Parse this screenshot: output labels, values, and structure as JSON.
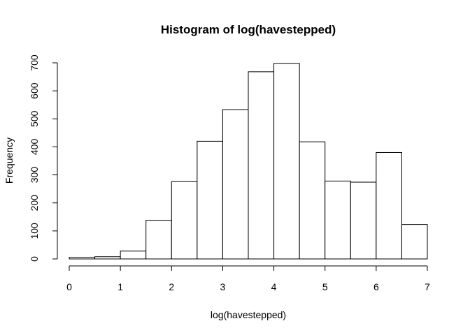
{
  "chart_data": {
    "type": "bar",
    "title": "Histogram of log(havestepped)",
    "xlabel": "log(havestepped)",
    "ylabel": "Frequency",
    "bin_edges": [
      0,
      0.5,
      1,
      1.5,
      2,
      2.5,
      3,
      3.5,
      4,
      4.5,
      5,
      5.5,
      6,
      6.5,
      7
    ],
    "values": [
      6,
      8,
      28,
      138,
      276,
      420,
      533,
      668,
      698,
      418,
      278,
      274,
      380,
      123
    ],
    "xlim": [
      0,
      7
    ],
    "ylim": [
      0,
      700
    ],
    "xticks": [
      "0",
      "1",
      "2",
      "3",
      "4",
      "5",
      "6",
      "7"
    ],
    "yticks": [
      "0",
      "100",
      "200",
      "300",
      "400",
      "500",
      "600",
      "700"
    ],
    "grid": false,
    "legend": "none"
  }
}
